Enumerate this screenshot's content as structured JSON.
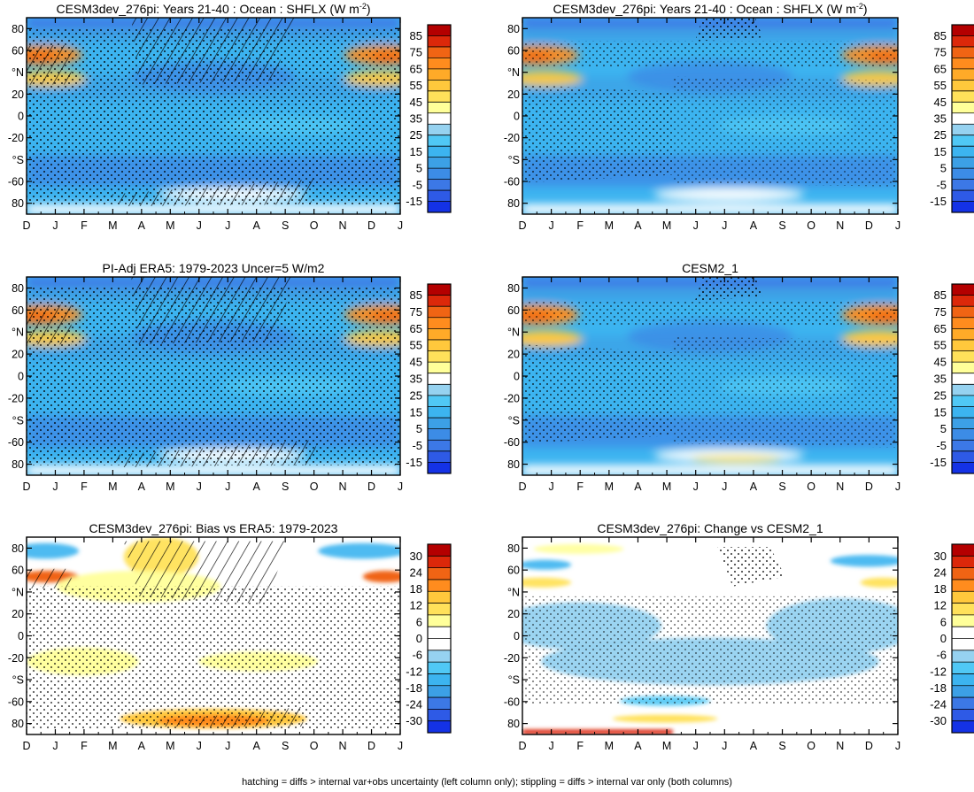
{
  "figure": {
    "footer": "hatching = diffs > internal var+obs uncertainty (left column only); stippling = diffs > internal var only (both columns)"
  },
  "colors": {
    "field_scale": [
      "#1432e6",
      "#2e5ae6",
      "#3c78e6",
      "#3c8ce6",
      "#3ca0e6",
      "#3cb4f0",
      "#50c8f5",
      "#96d2f0",
      "#ffffff",
      "#ffff9a",
      "#ffe15a",
      "#ffc83c",
      "#ffaa28",
      "#ff8c1e",
      "#f06414",
      "#dc280a",
      "#b40000"
    ],
    "diff_scale": [
      "#1432e6",
      "#2e5ae6",
      "#3c78e6",
      "#3ca0e6",
      "#3cb4f0",
      "#50c8f5",
      "#96d2f0",
      "#ffffff",
      "#ffffff",
      "#ffff9a",
      "#ffe15a",
      "#ffc83c",
      "#ff8c1e",
      "#f06414",
      "#dc280a",
      "#b40000"
    ]
  },
  "chart_data": [
    {
      "type": "heatmap",
      "id": "p1",
      "title": "CESM3dev_276pi: Years 21-40 : Ocean : SHFLX (W m",
      "title_sup": "-2",
      "title_tail": ")",
      "x": [
        "D",
        "J",
        "F",
        "M",
        "A",
        "M",
        "J",
        "J",
        "A",
        "S",
        "O",
        "N",
        "D",
        "J"
      ],
      "y_ticks": [
        "80",
        "60",
        "°N",
        "20",
        "0",
        "-20",
        "°S",
        "-60",
        "80"
      ],
      "colorbar": [
        "85",
        "75",
        "65",
        "55",
        "45",
        "35",
        "25",
        "15",
        "5",
        "-5",
        "-15"
      ],
      "scale": "field",
      "ylim": [
        -90,
        90
      ]
    },
    {
      "type": "heatmap",
      "id": "p2",
      "title": "CESM3dev_276pi: Years 21-40 : Ocean : SHFLX (W m",
      "title_sup": "-2",
      "title_tail": ")",
      "x": [
        "D",
        "J",
        "F",
        "M",
        "A",
        "M",
        "J",
        "J",
        "A",
        "S",
        "O",
        "N",
        "D",
        "J"
      ],
      "y_ticks": [
        "80",
        "60",
        "°N",
        "20",
        "0",
        "-20",
        "°S",
        "-60",
        "80"
      ],
      "colorbar": [
        "85",
        "75",
        "65",
        "55",
        "45",
        "35",
        "25",
        "15",
        "5",
        "-5",
        "-15"
      ],
      "scale": "field",
      "ylim": [
        -90,
        90
      ]
    },
    {
      "type": "heatmap",
      "id": "p3",
      "title": "PI-Adj ERA5: 1979-2023 Uncer=5 W/m2",
      "x": [
        "D",
        "J",
        "F",
        "M",
        "A",
        "M",
        "J",
        "J",
        "A",
        "S",
        "O",
        "N",
        "D",
        "J"
      ],
      "y_ticks": [
        "80",
        "60",
        "°N",
        "20",
        "0",
        "-20",
        "°S",
        "-60",
        "80"
      ],
      "colorbar": [
        "85",
        "75",
        "65",
        "55",
        "45",
        "35",
        "25",
        "15",
        "5",
        "-5",
        "-15"
      ],
      "scale": "field",
      "ylim": [
        -90,
        90
      ]
    },
    {
      "type": "heatmap",
      "id": "p4",
      "title": "CESM2_1",
      "x": [
        "D",
        "J",
        "F",
        "M",
        "A",
        "M",
        "J",
        "J",
        "A",
        "S",
        "O",
        "N",
        "D",
        "J"
      ],
      "y_ticks": [
        "80",
        "60",
        "°N",
        "20",
        "0",
        "-20",
        "°S",
        "-60",
        "80"
      ],
      "colorbar": [
        "85",
        "75",
        "65",
        "55",
        "45",
        "35",
        "25",
        "15",
        "5",
        "-5",
        "-15"
      ],
      "scale": "field",
      "ylim": [
        -90,
        90
      ]
    },
    {
      "type": "heatmap",
      "id": "p5",
      "title": "CESM3dev_276pi: Bias vs ERA5: 1979-2023",
      "x": [
        "D",
        "J",
        "F",
        "M",
        "A",
        "M",
        "J",
        "J",
        "A",
        "S",
        "O",
        "N",
        "D",
        "J"
      ],
      "y_ticks": [
        "80",
        "60",
        "°N",
        "20",
        "0",
        "-20",
        "°S",
        "-60",
        "80"
      ],
      "colorbar": [
        "30",
        "24",
        "18",
        "12",
        "6",
        "0",
        "-6",
        "-12",
        "-18",
        "-24",
        "-30"
      ],
      "scale": "diff",
      "ylim": [
        -90,
        90
      ]
    },
    {
      "type": "heatmap",
      "id": "p6",
      "title": "CESM3dev_276pi: Change vs CESM2_1",
      "x": [
        "D",
        "J",
        "F",
        "M",
        "A",
        "M",
        "J",
        "J",
        "A",
        "S",
        "O",
        "N",
        "D",
        "J"
      ],
      "y_ticks": [
        "80",
        "60",
        "°N",
        "20",
        "0",
        "-20",
        "°S",
        "-60",
        "80"
      ],
      "colorbar": [
        "30",
        "24",
        "18",
        "12",
        "6",
        "0",
        "-6",
        "-12",
        "-18",
        "-24",
        "-30"
      ],
      "scale": "diff",
      "ylim": [
        -90,
        90
      ]
    }
  ]
}
